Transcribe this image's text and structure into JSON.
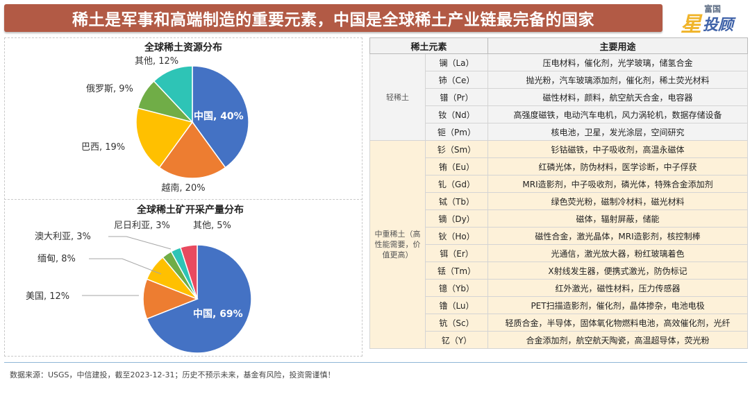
{
  "banner": {
    "title": "稀土是军事和高端制造的重要元素，中国是全球稀土产业链最完备的国家"
  },
  "logo": {
    "top_text": "富国",
    "star_text": "星",
    "brand_text": "投顾"
  },
  "colors": {
    "banner": "#b25a45",
    "china": "#4472c4",
    "orange": "#ed7d31",
    "yellow": "#ffc000",
    "green": "#70ad47",
    "teal": "#2ec4b6",
    "red": "#e84a5f",
    "light_row": "#f3f3f3",
    "heavy_row": "#fdf1d9"
  },
  "chart_data": [
    {
      "type": "pie",
      "title": "全球稀土资源分布",
      "slices": [
        {
          "label": "中国, 40%",
          "value": 40,
          "color": "#4472c4"
        },
        {
          "label": "越南, 20%",
          "value": 20,
          "color": "#ed7d31"
        },
        {
          "label": "巴西, 19%",
          "value": 19,
          "color": "#ffc000"
        },
        {
          "label": "俄罗斯, 9%",
          "value": 9,
          "color": "#70ad47"
        },
        {
          "label": "其他, 12%",
          "value": 12,
          "color": "#2ec4b6"
        }
      ]
    },
    {
      "type": "pie",
      "title": "全球稀土矿开采产量分布",
      "slices": [
        {
          "label": "中国, 69%",
          "value": 69,
          "color": "#4472c4"
        },
        {
          "label": "美国, 12%",
          "value": 12,
          "color": "#ed7d31"
        },
        {
          "label": "缅甸, 8%",
          "value": 8,
          "color": "#ffc000"
        },
        {
          "label": "澳大利亚, 3%",
          "value": 3,
          "color": "#70ad47"
        },
        {
          "label": "尼日利亚, 3%",
          "value": 3,
          "color": "#2ec4b6"
        },
        {
          "label": "其他, 5%",
          "value": 5,
          "color": "#e84a5f"
        }
      ]
    }
  ],
  "table": {
    "headers": [
      "稀土元素",
      "主要用途"
    ],
    "groups": [
      {
        "name": "轻稀土",
        "style": "light",
        "rows": [
          {
            "element": "镧（La）",
            "use": "压电材料，催化剂，光学玻璃，储氢合金"
          },
          {
            "element": "铈（Ce）",
            "use": "抛光粉，汽车玻璃添加剂，催化剂，稀土荧光材料"
          },
          {
            "element": "镨（Pr）",
            "use": "磁性材料，颜料，航空航天合金，电容器"
          },
          {
            "element": "钕（Nd）",
            "use": "高强度磁铁，电动汽车电机，风力涡轮机，数据存储设备"
          },
          {
            "element": "钷（Pm）",
            "use": "核电池，卫星，发光涂层，空间研究"
          }
        ]
      },
      {
        "name": "中重稀土（高性能需要，价值更高）",
        "style": "heavy",
        "rows": [
          {
            "element": "钐（Sm）",
            "use": "钐钴磁铁，中子吸收剂，高温永磁体"
          },
          {
            "element": "铕（Eu）",
            "use": "红磷光体，防伪材料，医学诊断，中子俘获"
          },
          {
            "element": "钆（Gd）",
            "use": "MRI造影剂，中子吸收剂，磷光体，特殊合金添加剂"
          },
          {
            "element": "铽（Tb）",
            "use": "绿色荧光粉，磁制冷材料，磁光材料"
          },
          {
            "element": "镝（Dy）",
            "use": "磁体，辐射屏蔽，储能"
          },
          {
            "element": "钬（Ho）",
            "use": "磁性合金，激光晶体，MRI造影剂，核控制棒"
          },
          {
            "element": "铒（Er）",
            "use": "光通信，激光放大器，粉红玻璃着色"
          },
          {
            "element": "铥（Tm）",
            "use": "X射线发生器，便携式激光，防伪标记"
          },
          {
            "element": "镱（Yb）",
            "use": "红外激光，磁性材料，压力传感器"
          },
          {
            "element": "镥（Lu）",
            "use": "PET扫描造影剂，催化剂，晶体掺杂，电池电极"
          },
          {
            "element": "钪（Sc）",
            "use": "轻质合金，半导体，固体氧化物燃料电池，高效催化剂，光纤"
          },
          {
            "element": "钇（Y）",
            "use": "合金添加剂，航空航天陶瓷，高温超导体，荧光粉"
          }
        ]
      }
    ]
  },
  "footer": {
    "text": "数据来源：USGS，中信建投，截至2023-12-31；历史不预示未来，基金有风险，投资需谨慎！"
  }
}
